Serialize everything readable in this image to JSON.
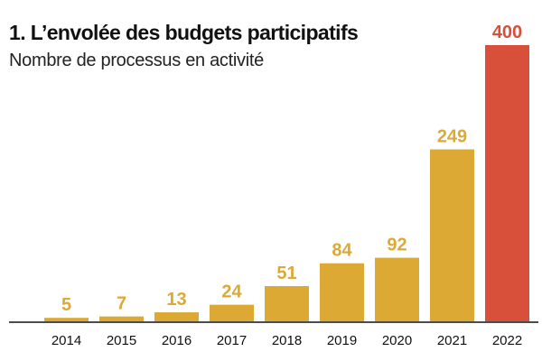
{
  "chart_data": {
    "type": "bar",
    "title": "1. L’envolée des budgets participatifs",
    "subtitle": "Nombre de processus en activité",
    "categories": [
      "2014",
      "2015",
      "2016",
      "2017",
      "2018",
      "2019",
      "2020",
      "2021",
      "2022"
    ],
    "values": [
      5,
      7,
      13,
      24,
      51,
      84,
      92,
      249,
      400
    ],
    "data_labels": [
      "5",
      "7",
      "13",
      "24",
      "51",
      "84",
      "92",
      "249",
      "400"
    ],
    "xlabel": "",
    "ylabel": "",
    "ylim": [
      0,
      400
    ],
    "grid": false,
    "legend": "none",
    "colors": {
      "default": "#DDA935",
      "highlight": "#D9503A",
      "axis": "#111111"
    },
    "highlight_category": "2022"
  }
}
